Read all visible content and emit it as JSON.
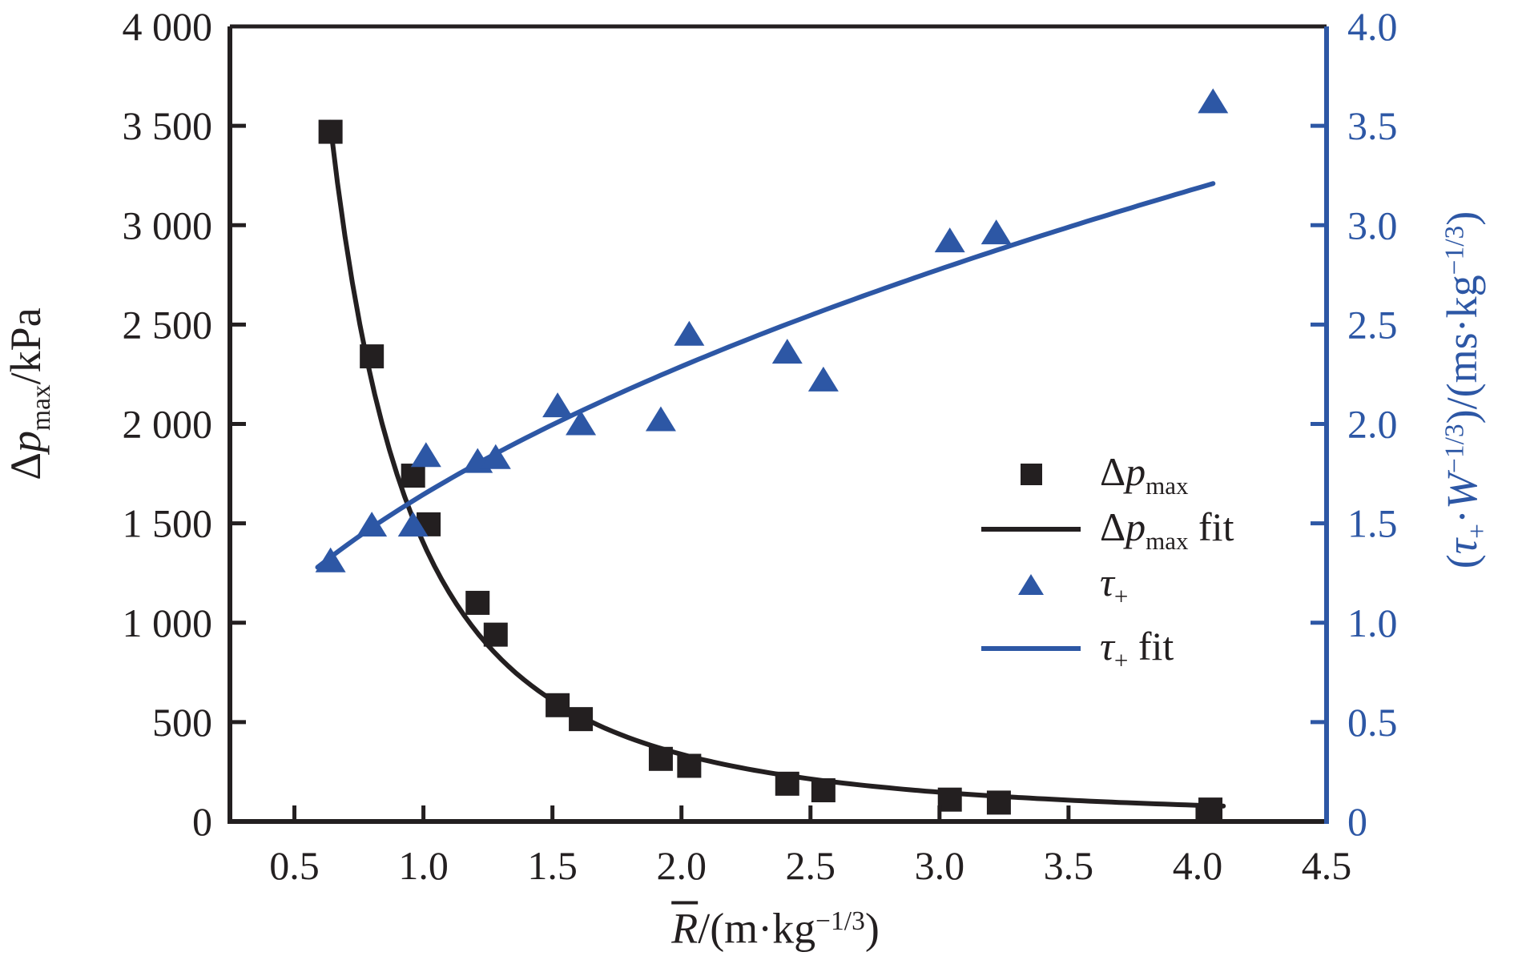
{
  "colors": {
    "black": "#231f20",
    "blue": "#2d57a5",
    "background": "#ffffff"
  },
  "titles": {
    "left_axis": {
      "delta": "Δ",
      "p": "p",
      "sub": "max",
      "unit": "/kPa"
    },
    "x_axis": {
      "r": "R",
      "mid": "/(m·kg",
      "exp": "−1/3",
      "close": ")"
    },
    "right_axis": {
      "open": "(",
      "tau": "τ",
      "tau_sub": "+",
      "dot": "·",
      "w": "W",
      "w_exp": "−1/3",
      "mid": ")/(ms·kg",
      "exp": "−1/3",
      "close": ")"
    }
  },
  "legend": {
    "row1": {
      "delta": "Δ",
      "p": "p",
      "sub": "max",
      "post": ""
    },
    "row2": {
      "delta": "Δ",
      "p": "p",
      "sub": "max",
      "post": " fit"
    },
    "row3": {
      "tau": "τ",
      "sub": "+",
      "post": ""
    },
    "row4": {
      "tau": "τ",
      "sub": "+",
      "post": " fit"
    }
  },
  "chart_data": {
    "type": "scatter",
    "x_axis": {
      "label": "R/(m·kg−1/3)",
      "range": [
        0.25,
        4.5
      ],
      "ticks": [
        {
          "v": 0.5,
          "label": "0.5",
          "tick": true
        },
        {
          "v": 1.0,
          "label": "1.0",
          "tick": true
        },
        {
          "v": 1.5,
          "label": "1.5",
          "tick": true
        },
        {
          "v": 2.0,
          "label": "2.0",
          "tick": true
        },
        {
          "v": 2.5,
          "label": "2.5",
          "tick": true
        },
        {
          "v": 3.0,
          "label": "3.0",
          "tick": true
        },
        {
          "v": 3.5,
          "label": "3.5",
          "tick": true
        },
        {
          "v": 4.0,
          "label": "4.0",
          "tick": true
        },
        {
          "v": 4.5,
          "label": "4.5",
          "tick": false
        }
      ]
    },
    "y_left": {
      "label": "Δp_max/kPa",
      "range": [
        0,
        4000
      ],
      "ticks": [
        {
          "v": 0,
          "label": "0",
          "tick": false
        },
        {
          "v": 500,
          "label": "500",
          "tick": true
        },
        {
          "v": 1000,
          "label": "1 000",
          "tick": true
        },
        {
          "v": 1500,
          "label": "1 500",
          "tick": true
        },
        {
          "v": 2000,
          "label": "2 000",
          "tick": true
        },
        {
          "v": 2500,
          "label": "2 500",
          "tick": true
        },
        {
          "v": 3000,
          "label": "3 000",
          "tick": true
        },
        {
          "v": 3500,
          "label": "3 500",
          "tick": true
        },
        {
          "v": 4000,
          "label": "4 000",
          "tick": false
        }
      ]
    },
    "y_right": {
      "label": "(τ+·W−1/3)/(ms·kg−1/3)",
      "range": [
        0,
        4.0
      ],
      "ticks": [
        {
          "v": 0.0,
          "label": "0",
          "tick": false
        },
        {
          "v": 0.5,
          "label": "0.5",
          "tick": true
        },
        {
          "v": 1.0,
          "label": "1.0",
          "tick": true
        },
        {
          "v": 1.5,
          "label": "1.5",
          "tick": true
        },
        {
          "v": 2.0,
          "label": "2.0",
          "tick": true
        },
        {
          "v": 2.5,
          "label": "2.5",
          "tick": true
        },
        {
          "v": 3.0,
          "label": "3.0",
          "tick": true
        },
        {
          "v": 3.5,
          "label": "3.5",
          "tick": true
        },
        {
          "v": 4.0,
          "label": "4.0",
          "tick": false
        }
      ]
    },
    "series": [
      {
        "name": "dp_max",
        "axis": "left",
        "marker": "square",
        "color": "#231f20",
        "points": [
          [
            0.64,
            3470
          ],
          [
            0.8,
            2340
          ],
          [
            0.96,
            1740
          ],
          [
            1.02,
            1495
          ],
          [
            1.21,
            1100
          ],
          [
            1.28,
            940
          ],
          [
            1.52,
            585
          ],
          [
            1.61,
            515
          ],
          [
            1.92,
            315
          ],
          [
            2.03,
            280
          ],
          [
            2.41,
            190
          ],
          [
            2.55,
            157
          ],
          [
            3.04,
            110
          ],
          [
            3.23,
            95
          ],
          [
            4.05,
            60
          ]
        ]
      },
      {
        "name": "dp_max_fit",
        "axis": "left",
        "kind": "power_fit",
        "color": "#231f20",
        "a": 1400,
        "b": -2.05,
        "domain": [
          0.638,
          4.1
        ]
      },
      {
        "name": "tau_plus",
        "axis": "right",
        "marker": "triangle",
        "color": "#2d57a5",
        "points": [
          [
            0.64,
            1.31
          ],
          [
            0.8,
            1.49
          ],
          [
            0.96,
            1.49
          ],
          [
            1.01,
            1.84
          ],
          [
            1.21,
            1.81
          ],
          [
            1.28,
            1.83
          ],
          [
            1.52,
            2.09
          ],
          [
            1.61,
            2.0
          ],
          [
            1.92,
            2.02
          ],
          [
            2.03,
            2.45
          ],
          [
            2.41,
            2.36
          ],
          [
            2.55,
            2.22
          ],
          [
            3.04,
            2.92
          ],
          [
            3.22,
            2.96
          ],
          [
            4.06,
            3.62
          ]
        ]
      },
      {
        "name": "tau_fit",
        "axis": "right",
        "kind": "power_fit",
        "color": "#2d57a5",
        "a": 1.645,
        "b": 0.477,
        "domain": [
          0.59,
          4.06
        ]
      }
    ],
    "legend_entries": [
      "Δp_max",
      "Δp_max fit",
      "τ+",
      "τ+ fit"
    ],
    "grid": false,
    "legend_position": "center-right"
  }
}
